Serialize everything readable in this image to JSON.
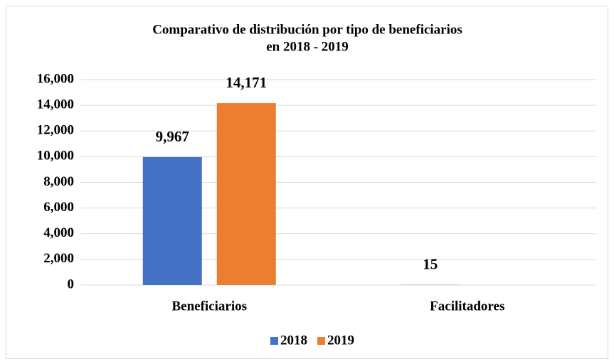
{
  "chart_data": {
    "type": "bar",
    "title": [
      "Comparativo de distribución por tipo de beneficiarios",
      "en 2018 - 2019"
    ],
    "categories": [
      "Beneficiarios",
      "Facilitadores"
    ],
    "series": [
      {
        "name": "2018",
        "color": "#4472c4",
        "values": [
          9967,
          15
        ],
        "value_labels": [
          "9,967",
          "15"
        ]
      },
      {
        "name": "2019",
        "color": "#ed7d31",
        "values": [
          14171,
          null
        ],
        "value_labels": [
          "14,171",
          null
        ]
      }
    ],
    "ylim": [
      0,
      16000
    ],
    "yticks": [
      0,
      {
        "value": 2000,
        "label": "2,000"
      },
      {
        "value": 4000,
        "label": "4,000"
      },
      {
        "value": 6000,
        "label": "6,000"
      },
      {
        "value": 8000,
        "label": "8,000"
      },
      {
        "value": 10000,
        "label": "10,000"
      },
      {
        "value": 12000,
        "label": "12,000"
      },
      {
        "value": 14000,
        "label": "14,000"
      },
      {
        "value": 16000,
        "label": "16,000"
      }
    ],
    "grid": true,
    "legend": "bottom"
  }
}
